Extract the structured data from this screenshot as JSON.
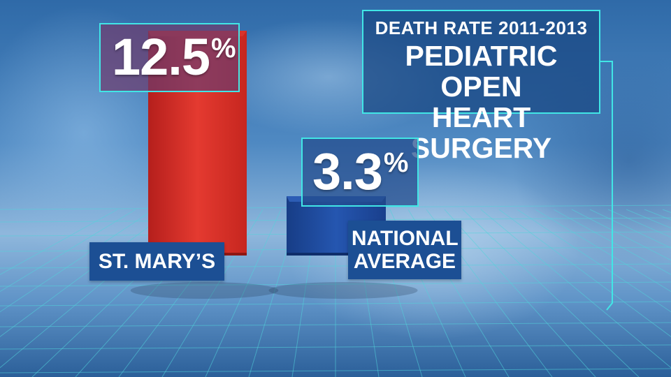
{
  "chart_data": {
    "type": "bar",
    "title_lines": [
      "DEATH RATE 2011-2013",
      "PEDIATRIC OPEN",
      "HEART SURGERY"
    ],
    "categories": [
      "ST. MARY’S",
      "NATIONAL AVERAGE"
    ],
    "values": [
      12.5,
      3.3
    ],
    "value_labels": [
      "12.5",
      "3.3"
    ],
    "unit": "%",
    "colors": [
      "#e2372e",
      "#1f4fa6"
    ],
    "accent_color": "#41e6e6",
    "label_box_color": "#1c4f94",
    "ylim": [
      0,
      12.5
    ],
    "grid": true
  }
}
